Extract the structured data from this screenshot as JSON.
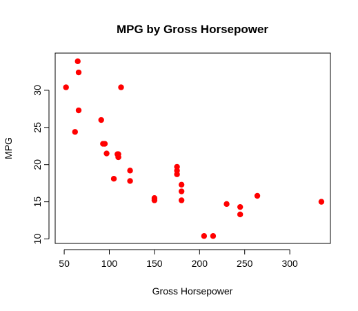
{
  "chart_data": {
    "type": "scatter",
    "title": "MPG by Gross Horsepower",
    "xlabel": "Gross Horsepower",
    "ylabel": "MPG",
    "xlim": [
      40,
      345
    ],
    "ylim": [
      9.4,
      35
    ],
    "xticks": [
      50,
      100,
      150,
      200,
      250,
      300
    ],
    "yticks": [
      10,
      15,
      20,
      25,
      30
    ],
    "grid": false,
    "point_color": "#ff0000",
    "points": [
      {
        "x": 110,
        "y": 21.0
      },
      {
        "x": 110,
        "y": 21.0
      },
      {
        "x": 93,
        "y": 22.8
      },
      {
        "x": 110,
        "y": 21.4
      },
      {
        "x": 175,
        "y": 18.7
      },
      {
        "x": 105,
        "y": 18.1
      },
      {
        "x": 245,
        "y": 14.3
      },
      {
        "x": 62,
        "y": 24.4
      },
      {
        "x": 95,
        "y": 22.8
      },
      {
        "x": 123,
        "y": 19.2
      },
      {
        "x": 123,
        "y": 17.8
      },
      {
        "x": 180,
        "y": 16.4
      },
      {
        "x": 180,
        "y": 17.3
      },
      {
        "x": 180,
        "y": 15.2
      },
      {
        "x": 205,
        "y": 10.4
      },
      {
        "x": 215,
        "y": 10.4
      },
      {
        "x": 230,
        "y": 14.7
      },
      {
        "x": 66,
        "y": 32.4
      },
      {
        "x": 52,
        "y": 30.4
      },
      {
        "x": 65,
        "y": 33.9
      },
      {
        "x": 97,
        "y": 21.5
      },
      {
        "x": 150,
        "y": 15.5
      },
      {
        "x": 150,
        "y": 15.2
      },
      {
        "x": 245,
        "y": 13.3
      },
      {
        "x": 175,
        "y": 19.2
      },
      {
        "x": 66,
        "y": 27.3
      },
      {
        "x": 91,
        "y": 26.0
      },
      {
        "x": 113,
        "y": 30.4
      },
      {
        "x": 264,
        "y": 15.8
      },
      {
        "x": 175,
        "y": 19.7
      },
      {
        "x": 335,
        "y": 15.0
      },
      {
        "x": 109,
        "y": 21.4
      }
    ]
  }
}
